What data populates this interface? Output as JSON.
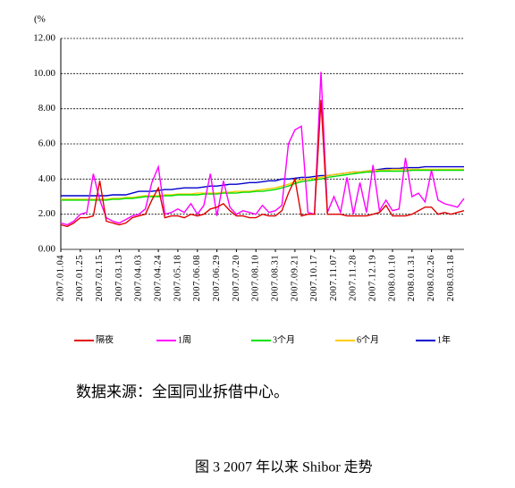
{
  "chart_data": {
    "type": "line",
    "y_unit": "(%",
    "categories": [
      "2007.01.04",
      null,
      null,
      "2007.01.25",
      null,
      null,
      "2007.02.15",
      null,
      null,
      "2007.03.13",
      null,
      null,
      "2007.04.03",
      null,
      null,
      "2007.04.24",
      null,
      null,
      "2007.05.18",
      null,
      null,
      "2007.06.08",
      null,
      null,
      "2007.06.29",
      null,
      null,
      "2007.07.20",
      null,
      null,
      "2007.08.10",
      null,
      null,
      "2007.08.31",
      null,
      null,
      "2007.09.21",
      null,
      null,
      "2007.10.17",
      null,
      null,
      "2007.11.07",
      null,
      null,
      "2007.11.28",
      null,
      null,
      "2007.12.19",
      null,
      null,
      "2008.01.10",
      null,
      null,
      "2008.01.31",
      null,
      null,
      "2008.02.26",
      null,
      null,
      "2008.03.18",
      null,
      null
    ],
    "series": [
      {
        "name": "隔夜",
        "color": "#e00000",
        "values": [
          1.4,
          1.3,
          1.5,
          1.8,
          1.8,
          1.9,
          3.9,
          1.6,
          1.5,
          1.4,
          1.5,
          1.8,
          1.9,
          2.0,
          2.8,
          3.5,
          1.8,
          1.9,
          1.9,
          1.8,
          2.0,
          1.9,
          2.0,
          2.3,
          2.4,
          2.6,
          2.2,
          1.9,
          1.9,
          1.8,
          1.8,
          2.0,
          1.9,
          1.9,
          2.2,
          3.2,
          4.0,
          1.9,
          2.0,
          2.0,
          8.5,
          2.0,
          2.0,
          2.0,
          1.9,
          1.9,
          1.9,
          1.9,
          2.0,
          2.1,
          2.5,
          1.9,
          1.9,
          1.9,
          2.0,
          2.2,
          2.4,
          2.4,
          2.0,
          2.1,
          2.0,
          2.1,
          2.2
        ]
      },
      {
        "name": "1周",
        "color": "#ff00ff",
        "values": [
          1.5,
          1.4,
          1.6,
          2.0,
          2.1,
          4.3,
          2.8,
          1.8,
          1.6,
          1.5,
          1.7,
          1.9,
          2.0,
          2.3,
          3.8,
          4.7,
          2.0,
          2.1,
          2.3,
          2.1,
          2.6,
          2.0,
          2.5,
          4.3,
          1.9,
          3.9,
          2.4,
          2.0,
          2.2,
          2.1,
          2.0,
          2.5,
          2.1,
          2.2,
          2.5,
          6.0,
          6.8,
          7.0,
          2.1,
          2.0,
          10.1,
          2.1,
          3.0,
          2.1,
          4.1,
          2.0,
          3.8,
          2.1,
          4.8,
          2.2,
          2.8,
          2.2,
          2.3,
          5.2,
          3.0,
          3.2,
          2.7,
          4.5,
          2.8,
          2.6,
          2.5,
          2.4,
          2.9
        ]
      },
      {
        "name": "3个月",
        "color": "#00e000",
        "values": [
          2.8,
          2.8,
          2.8,
          2.8,
          2.8,
          2.8,
          2.8,
          2.8,
          2.85,
          2.85,
          2.9,
          2.9,
          2.95,
          3.0,
          3.0,
          3.0,
          3.05,
          3.05,
          3.1,
          3.1,
          3.1,
          3.1,
          3.15,
          3.15,
          3.15,
          3.2,
          3.2,
          3.2,
          3.25,
          3.25,
          3.3,
          3.3,
          3.35,
          3.4,
          3.5,
          3.6,
          3.75,
          3.85,
          3.9,
          3.95,
          4.0,
          4.1,
          4.15,
          4.2,
          4.25,
          4.3,
          4.35,
          4.4,
          4.4,
          4.45,
          4.45,
          4.45,
          4.45,
          4.45,
          4.5,
          4.5,
          4.5,
          4.5,
          4.5,
          4.5,
          4.5,
          4.5,
          4.5
        ]
      },
      {
        "name": "6个月",
        "color": "#ffcc00",
        "values": [
          2.85,
          2.85,
          2.85,
          2.85,
          2.85,
          2.85,
          2.85,
          2.85,
          2.9,
          2.9,
          2.95,
          2.95,
          3.0,
          3.05,
          3.05,
          3.05,
          3.1,
          3.1,
          3.15,
          3.15,
          3.15,
          3.2,
          3.2,
          3.2,
          3.2,
          3.25,
          3.25,
          3.3,
          3.3,
          3.3,
          3.35,
          3.4,
          3.45,
          3.5,
          3.6,
          3.7,
          3.85,
          3.95,
          4.0,
          4.05,
          4.1,
          4.2,
          4.25,
          4.3,
          4.35,
          4.4,
          4.4,
          4.45,
          4.5,
          4.5,
          4.5,
          4.55,
          4.55,
          4.55,
          4.55,
          4.55,
          4.55,
          4.55,
          4.55,
          4.55,
          4.55,
          4.55,
          4.55
        ]
      },
      {
        "name": "1年",
        "color": "#0000cc",
        "values": [
          3.05,
          3.05,
          3.05,
          3.05,
          3.05,
          3.05,
          3.05,
          3.05,
          3.1,
          3.1,
          3.1,
          3.2,
          3.3,
          3.3,
          3.3,
          3.35,
          3.4,
          3.4,
          3.45,
          3.5,
          3.5,
          3.5,
          3.55,
          3.6,
          3.6,
          3.65,
          3.7,
          3.7,
          3.75,
          3.8,
          3.8,
          3.85,
          3.9,
          3.9,
          4.0,
          4.0,
          4.05,
          4.1,
          4.1,
          4.15,
          4.2,
          4.2,
          4.25,
          4.3,
          4.35,
          4.4,
          4.4,
          4.45,
          4.5,
          4.55,
          4.6,
          4.6,
          4.6,
          4.65,
          4.65,
          4.65,
          4.7,
          4.7,
          4.7,
          4.7,
          4.7,
          4.7,
          4.7
        ]
      }
    ],
    "ylim": [
      0,
      12
    ],
    "yticks": [
      {
        "value": 0,
        "label": "0.00"
      },
      {
        "value": 2,
        "label": "2.00"
      },
      {
        "value": 4,
        "label": "4.00"
      },
      {
        "value": 6,
        "label": "6.00"
      },
      {
        "value": 8,
        "label": "8.00"
      },
      {
        "value": 10,
        "label": "10.00"
      },
      {
        "value": 12,
        "label": "12.00"
      }
    ],
    "grid": true,
    "legend": "bottom",
    "source": "数据来源：全国同业拆借中心。",
    "caption": "图 3 2007 年以来 Shibor 走势"
  }
}
